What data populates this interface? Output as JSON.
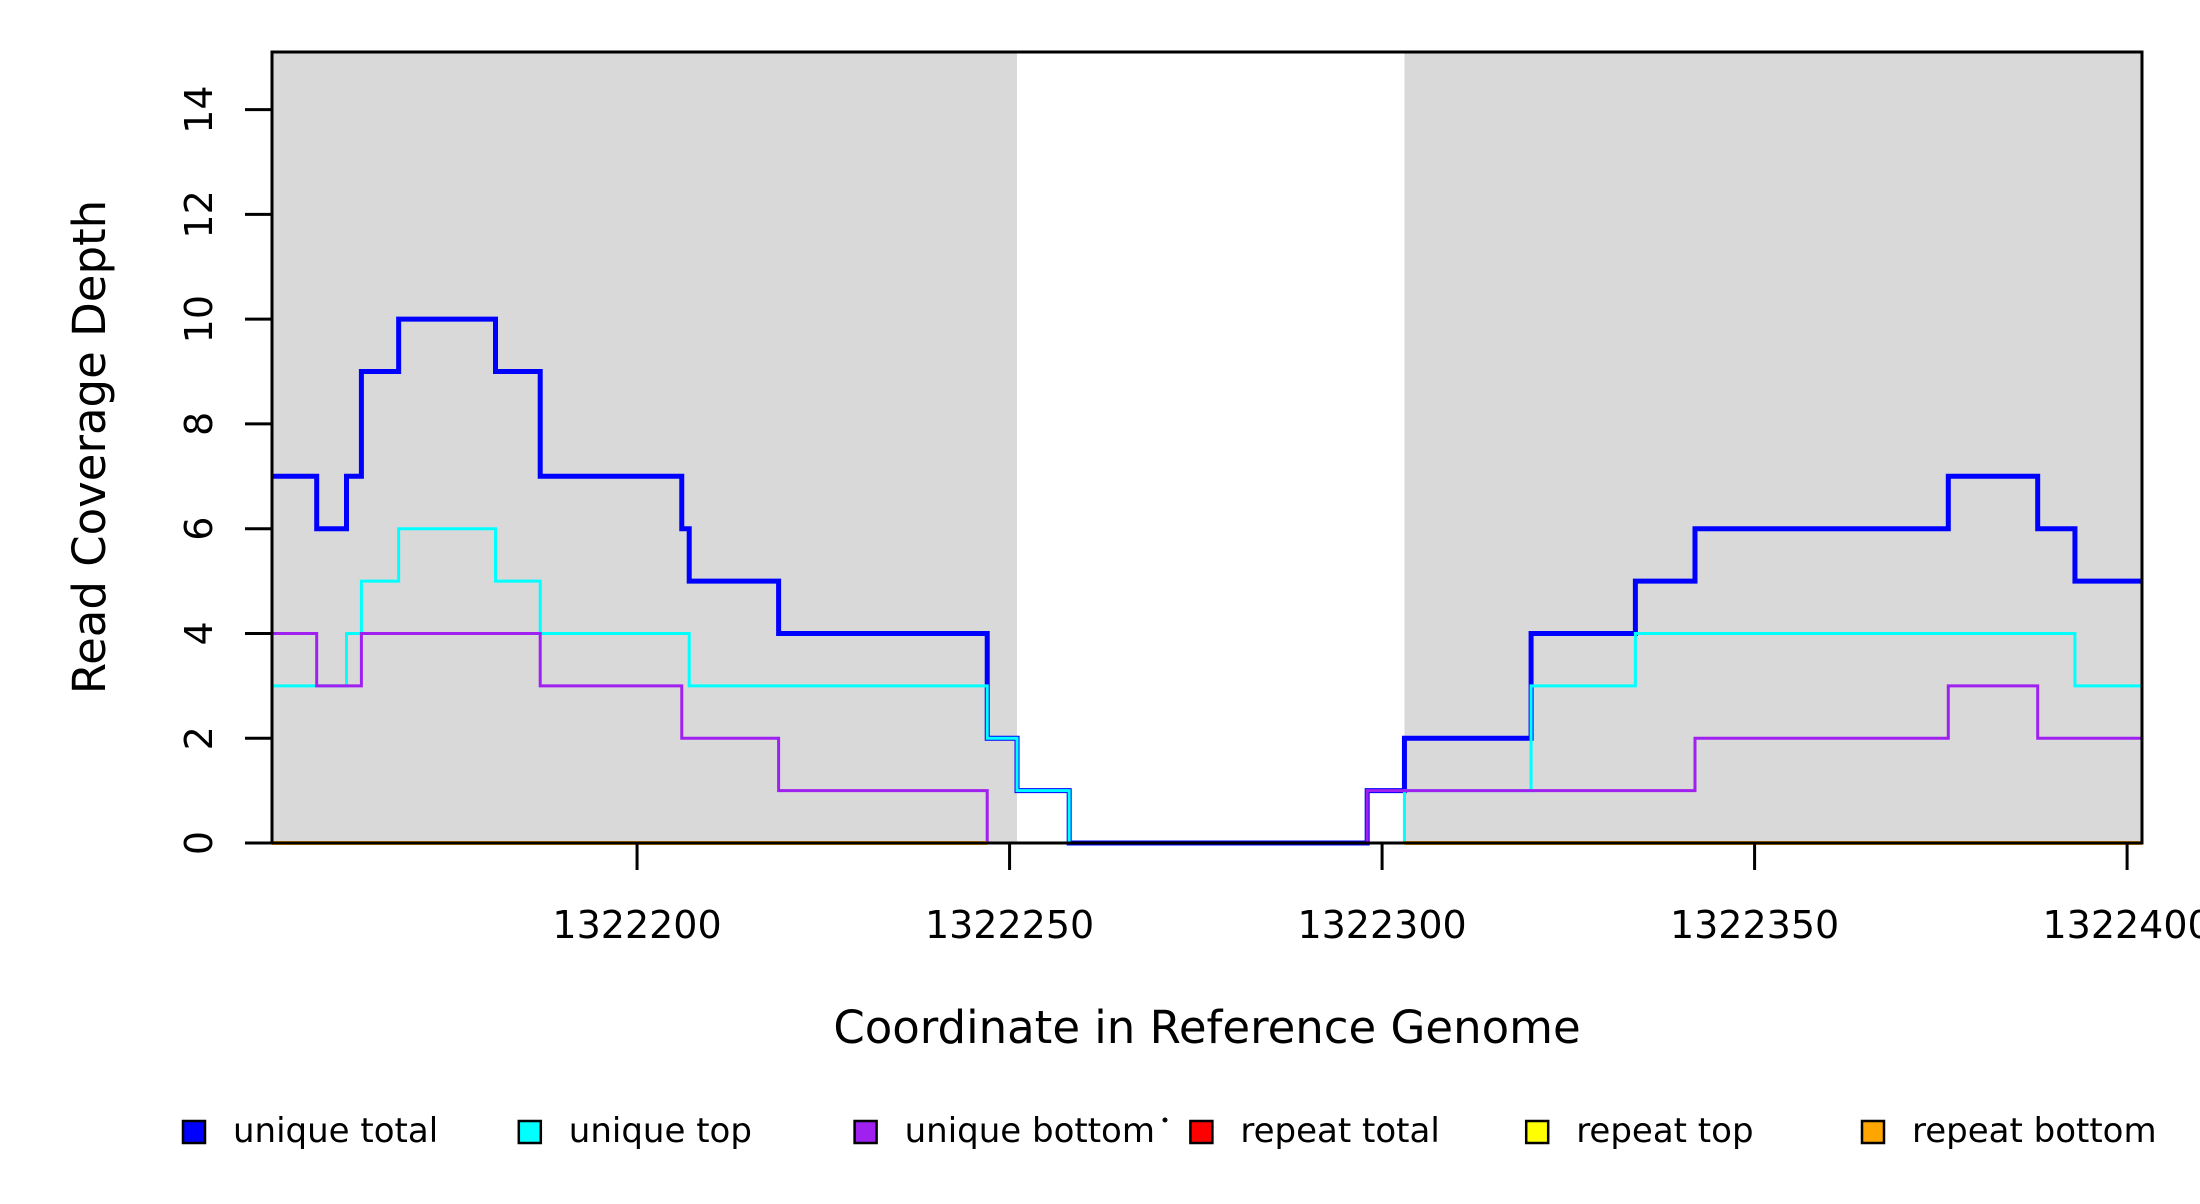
{
  "chart_data": {
    "type": "line",
    "subtype": "step-post-coverage",
    "title": "",
    "xlabel": "Coordinate in Reference Genome",
    "ylabel": "Read Coverage Depth",
    "xlim": [
      1322151,
      1322402
    ],
    "ylim": [
      0,
      15.1
    ],
    "grid": false,
    "legend_position": "bottom",
    "xticks": [
      1322200,
      1322250,
      1322300,
      1322350,
      1322400
    ],
    "xtick_labels": [
      "1322200",
      "1322250",
      "1322300",
      "1322350",
      "1322400"
    ],
    "yticks": [
      0,
      2,
      4,
      6,
      8,
      10,
      12,
      14
    ],
    "ytick_labels": [
      "0",
      "2",
      "4",
      "6",
      "8",
      "10",
      "12",
      "14"
    ],
    "shaded_regions": [
      {
        "name": "covered-region-left",
        "x0": 1322151,
        "x1": 1322251,
        "color": "#D9D9D9"
      },
      {
        "name": "covered-region-right",
        "x0": 1322303,
        "x1": 1322402,
        "color": "#D9D9D9"
      }
    ],
    "series": [
      {
        "name": "unique total",
        "color": "#0000FF",
        "width": 5,
        "x": [
          1322151,
          1322157,
          1322161,
          1322163,
          1322168,
          1322181,
          1322187,
          1322206,
          1322207,
          1322219,
          1322247,
          1322251,
          1322258,
          1322298,
          1322303,
          1322320,
          1322334,
          1322342,
          1322376,
          1322388,
          1322393
        ],
        "y": [
          7,
          6,
          7,
          9,
          10,
          9,
          7,
          6,
          5,
          4,
          2,
          1,
          0,
          1,
          2,
          4,
          5,
          6,
          7,
          6,
          5
        ]
      },
      {
        "name": "unique top",
        "color": "#00FFFF",
        "width": 3,
        "x": [
          1322151,
          1322161,
          1322163,
          1322168,
          1322181,
          1322187,
          1322207,
          1322247,
          1322251,
          1322258,
          1322303,
          1322320,
          1322334,
          1322393
        ],
        "y": [
          3,
          4,
          5,
          6,
          5,
          4,
          3,
          2,
          1,
          0,
          1,
          3,
          4,
          3
        ]
      },
      {
        "name": "unique bottom",
        "color": "#A020F0",
        "width": 3,
        "x": [
          1322151
        ],
        "y": [
          4
        ],
        "x_full": [
          1322151,
          1322157,
          1322163,
          1322187,
          1322206,
          1322219,
          1322247,
          1322298,
          1322342,
          1322376,
          1322388
        ],
        "y_full": [
          4,
          3,
          4,
          3,
          2,
          1,
          0,
          1,
          2,
          3,
          2
        ]
      },
      {
        "name": "repeat total",
        "color": "#FF0000",
        "width": 3,
        "x": [
          1322151
        ],
        "y": [
          0
        ]
      },
      {
        "name": "repeat top",
        "color": "#FFFF00",
        "width": 3,
        "x": [
          1322151
        ],
        "y": [
          0
        ]
      },
      {
        "name": "repeat bottom",
        "color": "#FFA500",
        "width": 4,
        "x": [
          1322151
        ],
        "y": [
          0
        ]
      }
    ],
    "baseline_overlay": [
      {
        "x0": 1322151,
        "x1": 1322247,
        "color": "#FFA500",
        "width": 4
      },
      {
        "x0": 1322247,
        "x1": 1322258,
        "color": "#FF0000",
        "width": 3
      },
      {
        "x0": 1322258,
        "x1": 1322298,
        "color": "#A020F0",
        "width": 3
      },
      {
        "x0": 1322298,
        "x1": 1322303,
        "color": "#00FFFF",
        "width": 3
      },
      {
        "x0": 1322303,
        "x1": 1322402,
        "color": "#FFA500",
        "width": 4
      }
    ],
    "legend": [
      {
        "label": "unique total",
        "color": "#0000FF"
      },
      {
        "label": "unique top",
        "color": "#00FFFF"
      },
      {
        "label": "unique bottom",
        "color": "#A020F0"
      },
      {
        "label": "repeat total",
        "color": "#FF0000"
      },
      {
        "label": "repeat top",
        "color": "#FFFF00"
      },
      {
        "label": "repeat bottom",
        "color": "#FFA500"
      }
    ]
  }
}
